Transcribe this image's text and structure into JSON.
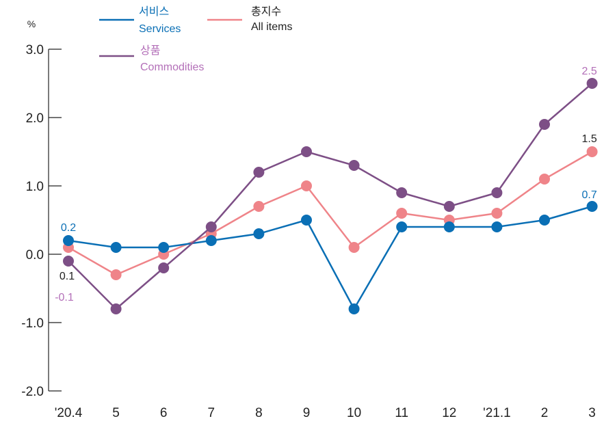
{
  "chart_data": {
    "type": "line",
    "unit": "%",
    "categories": [
      "'20.4",
      "5",
      "6",
      "7",
      "8",
      "9",
      "10",
      "11",
      "12",
      "'21.1",
      "2",
      "3"
    ],
    "ylim": [
      -2.0,
      3.0
    ],
    "yticks": [
      "3.0",
      "2.0",
      "1.0",
      "0.0",
      "-1.0",
      "-2.0"
    ],
    "grid": false,
    "legend_position": "top-left",
    "series": [
      {
        "key": "services",
        "name_ko": "서비스",
        "name_en": "Services",
        "color": "#0a6fb5",
        "values": [
          0.2,
          0.1,
          0.1,
          0.2,
          0.3,
          0.5,
          -0.8,
          0.4,
          0.4,
          0.4,
          0.5,
          0.7
        ],
        "labels": [
          {
            "index": 0,
            "text": "0.2"
          },
          {
            "index": 11,
            "text": "0.7"
          }
        ]
      },
      {
        "key": "all_items",
        "name_ko": "총지수",
        "name_en": "All items",
        "color": "#ef8489",
        "label_color": "#222222",
        "values": [
          0.1,
          -0.3,
          0.0,
          0.3,
          0.7,
          1.0,
          0.1,
          0.6,
          0.5,
          0.6,
          1.1,
          1.5
        ],
        "labels": [
          {
            "index": 0,
            "text": "0.1"
          },
          {
            "index": 11,
            "text": "1.5"
          }
        ]
      },
      {
        "key": "commodities",
        "name_ko": "상품",
        "name_en": "Commodities",
        "color": "#7d4f86",
        "label_color": "#b36fb8",
        "values": [
          -0.1,
          -0.8,
          -0.2,
          0.4,
          1.2,
          1.5,
          1.3,
          0.9,
          0.7,
          0.9,
          1.9,
          2.5
        ],
        "labels": [
          {
            "index": 0,
            "text": "-0.1"
          },
          {
            "index": 11,
            "text": "2.5"
          }
        ]
      }
    ]
  }
}
